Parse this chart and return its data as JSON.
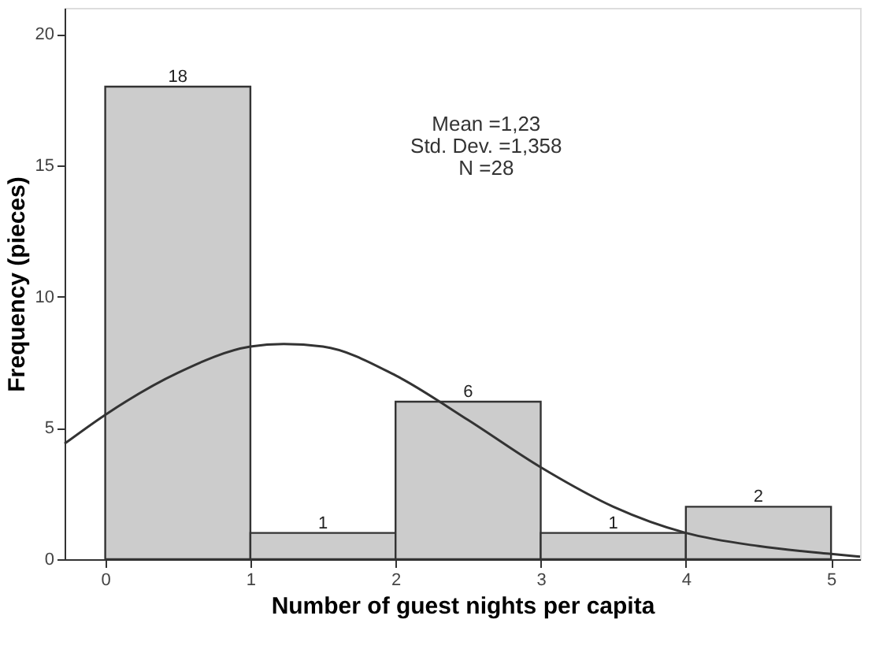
{
  "chart_data": {
    "type": "histogram",
    "xlabel": "Number of guest nights per capita",
    "ylabel": "Frequency (pieces)",
    "bins": [
      0,
      1,
      2,
      3,
      4,
      5
    ],
    "values": [
      18,
      1,
      6,
      1,
      2
    ],
    "color": "#cccccc",
    "value_labels": [
      "18",
      "1",
      "6",
      "1",
      "2"
    ],
    "series": [
      {
        "type": "line",
        "color": "#333333",
        "x": [
          -0.28,
          0,
          0.5,
          1,
          1.23,
          1.5,
          2,
          2.5,
          3,
          3.5,
          4,
          4.5,
          5,
          5.2
        ],
        "values": [
          4.4,
          5.5,
          7.1,
          8.1,
          8.2,
          8.1,
          7.0,
          5.3,
          3.5,
          2.0,
          1.0,
          0.5,
          0.2,
          0.1
        ]
      }
    ],
    "annotations": [
      "Mean =1,23",
      "Std. Dev. =1,358",
      "N =28"
    ],
    "xlim": [
      -0.28,
      5.2
    ],
    "ylim": [
      0,
      21
    ],
    "xticks": [
      0,
      1,
      2,
      3,
      4,
      5
    ],
    "yticks": [
      0,
      5,
      10,
      15,
      20
    ],
    "grid": false
  }
}
